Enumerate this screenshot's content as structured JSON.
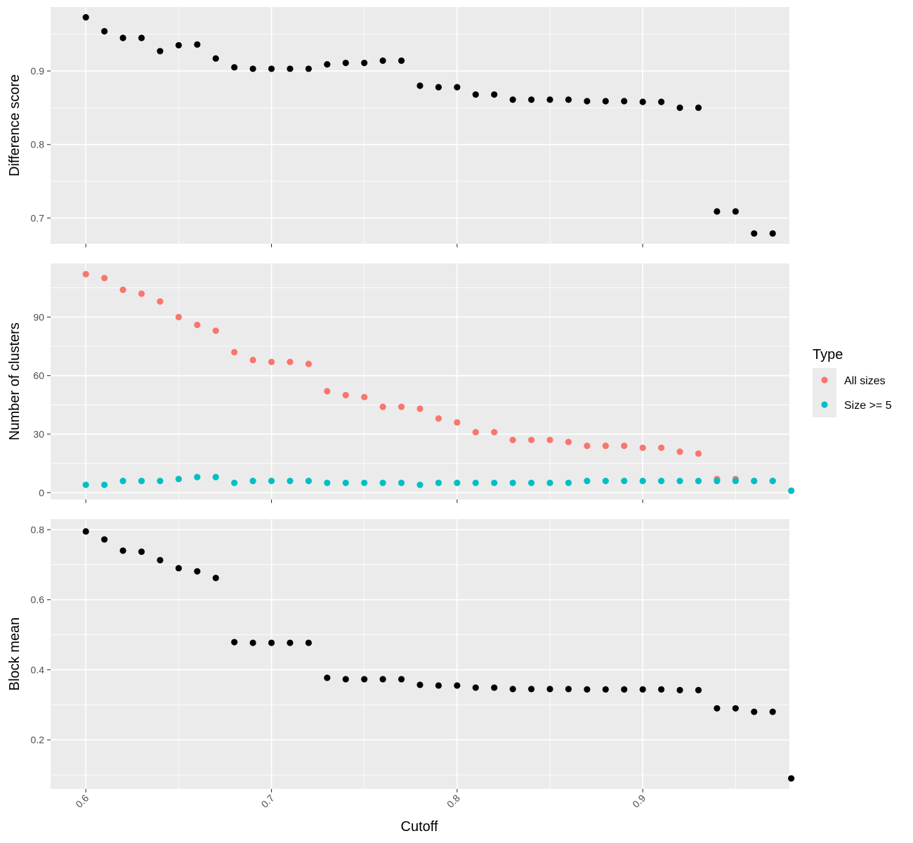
{
  "chart_data": {
    "type": "scatter",
    "xlabel": "Cutoff",
    "xlim": [
      0.581,
      0.979
    ],
    "x_ticks": [
      0.6,
      0.7,
      0.8,
      0.9
    ],
    "x_tick_labels": [
      "0.6",
      "0.7",
      "0.8",
      "0.9"
    ],
    "x_tick_label_rotation_deg": 45,
    "grid": true,
    "legend": {
      "title": "Type",
      "position": "right",
      "entries": [
        {
          "label": "All sizes",
          "color": "#f8766d"
        },
        {
          "label": "Size >= 5",
          "color": "#00bfc4"
        }
      ]
    },
    "panels": [
      {
        "ylabel": "Difference score",
        "ylim": [
          0.665,
          0.987
        ],
        "y_ticks": [
          0.7,
          0.8,
          0.9
        ],
        "y_tick_labels": [
          "0.7",
          "0.8",
          "0.9"
        ],
        "series": [
          {
            "color": "#000000",
            "x": [
              0.6,
              0.61,
              0.62,
              0.63,
              0.64,
              0.65,
              0.66,
              0.67,
              0.68,
              0.69,
              0.7,
              0.71,
              0.72,
              0.73,
              0.74,
              0.75,
              0.76,
              0.77,
              0.78,
              0.79,
              0.8,
              0.81,
              0.82,
              0.83,
              0.84,
              0.85,
              0.86,
              0.87,
              0.88,
              0.89,
              0.9,
              0.91,
              0.92,
              0.93,
              0.94,
              0.95,
              0.96,
              0.97
            ],
            "y": [
              0.973,
              0.954,
              0.945,
              0.945,
              0.927,
              0.935,
              0.936,
              0.917,
              0.905,
              0.903,
              0.903,
              0.903,
              0.903,
              0.909,
              0.911,
              0.911,
              0.914,
              0.914,
              0.88,
              0.878,
              0.878,
              0.868,
              0.868,
              0.861,
              0.861,
              0.861,
              0.861,
              0.859,
              0.859,
              0.859,
              0.858,
              0.858,
              0.85,
              0.85,
              0.709,
              0.709,
              0.679,
              0.679
            ]
          }
        ]
      },
      {
        "ylabel": "Number of clusters",
        "ylim": [
          -3.5,
          117.5
        ],
        "y_ticks": [
          0,
          30,
          60,
          90
        ],
        "y_tick_labels": [
          "0",
          "30",
          "60",
          "90"
        ],
        "series": [
          {
            "name": "All sizes",
            "color": "#f8766d",
            "x": [
              0.6,
              0.61,
              0.62,
              0.63,
              0.64,
              0.65,
              0.66,
              0.67,
              0.68,
              0.69,
              0.7,
              0.71,
              0.72,
              0.73,
              0.74,
              0.75,
              0.76,
              0.77,
              0.78,
              0.79,
              0.8,
              0.81,
              0.82,
              0.83,
              0.84,
              0.85,
              0.86,
              0.87,
              0.88,
              0.89,
              0.9,
              0.91,
              0.92,
              0.93,
              0.94,
              0.95,
              0.96,
              0.97,
              0.98
            ],
            "y": [
              112,
              110,
              104,
              102,
              98,
              90,
              86,
              83,
              72,
              68,
              67,
              67,
              66,
              52,
              50,
              49,
              44,
              44,
              43,
              38,
              36,
              31,
              31,
              27,
              27,
              27,
              26,
              24,
              24,
              24,
              23,
              23,
              21,
              20,
              7,
              7,
              6,
              6,
              1
            ]
          },
          {
            "name": "Size >= 5",
            "color": "#00bfc4",
            "x": [
              0.6,
              0.61,
              0.62,
              0.63,
              0.64,
              0.65,
              0.66,
              0.67,
              0.68,
              0.69,
              0.7,
              0.71,
              0.72,
              0.73,
              0.74,
              0.75,
              0.76,
              0.77,
              0.78,
              0.79,
              0.8,
              0.81,
              0.82,
              0.83,
              0.84,
              0.85,
              0.86,
              0.87,
              0.88,
              0.89,
              0.9,
              0.91,
              0.92,
              0.93,
              0.94,
              0.95,
              0.96,
              0.97,
              0.98
            ],
            "y": [
              4,
              4,
              6,
              6,
              6,
              7,
              8,
              8,
              5,
              6,
              6,
              6,
              6,
              5,
              5,
              5,
              5,
              5,
              4,
              5,
              5,
              5,
              5,
              5,
              5,
              5,
              5,
              6,
              6,
              6,
              6,
              6,
              6,
              6,
              6,
              6,
              6,
              6,
              1
            ]
          }
        ]
      },
      {
        "ylabel": "Block mean",
        "ylim": [
          0.06,
          0.83
        ],
        "y_ticks": [
          0.2,
          0.4,
          0.6,
          0.8
        ],
        "y_tick_labels": [
          "0.2",
          "0.4",
          "0.6",
          "0.8"
        ],
        "series": [
          {
            "color": "#000000",
            "x": [
              0.6,
              0.61,
              0.62,
              0.63,
              0.64,
              0.65,
              0.66,
              0.67,
              0.68,
              0.69,
              0.7,
              0.71,
              0.72,
              0.73,
              0.74,
              0.75,
              0.76,
              0.77,
              0.78,
              0.79,
              0.8,
              0.81,
              0.82,
              0.83,
              0.84,
              0.85,
              0.86,
              0.87,
              0.88,
              0.89,
              0.9,
              0.91,
              0.92,
              0.93,
              0.94,
              0.95,
              0.96,
              0.97,
              0.98
            ],
            "y": [
              0.795,
              0.772,
              0.74,
              0.737,
              0.713,
              0.69,
              0.681,
              0.662,
              0.479,
              0.477,
              0.477,
              0.477,
              0.477,
              0.377,
              0.373,
              0.373,
              0.373,
              0.373,
              0.357,
              0.355,
              0.355,
              0.349,
              0.349,
              0.345,
              0.345,
              0.345,
              0.345,
              0.344,
              0.344,
              0.344,
              0.344,
              0.344,
              0.342,
              0.342,
              0.29,
              0.29,
              0.28,
              0.28,
              0.09
            ]
          }
        ]
      }
    ]
  }
}
